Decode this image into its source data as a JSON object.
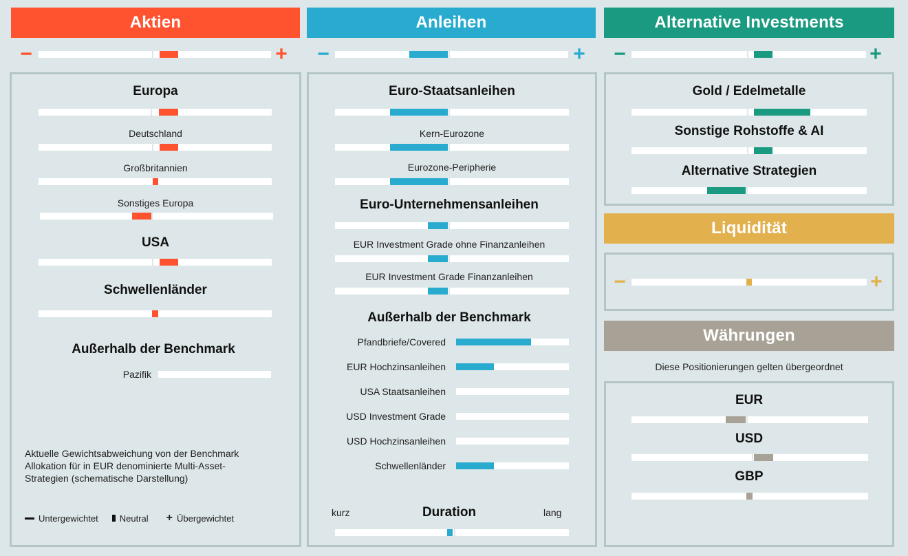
{
  "colors": {
    "aktien": "#ff5330",
    "anleihen": "#29abd0",
    "alternative": "#1a9a80",
    "liquiditaet": "#e3b04e",
    "waehrungen": "#a8a296"
  },
  "aktien": {
    "header": "Aktien",
    "minus": "−",
    "plus": "+",
    "rows": [
      {
        "label": "Europa"
      },
      {
        "label": "Deutschland"
      },
      {
        "label": "Großbritannien"
      },
      {
        "label": "Sonstiges Europa"
      },
      {
        "label": "USA"
      },
      {
        "label": "Schwellenländer"
      }
    ],
    "outside_title": "Außerhalb der Benchmark",
    "outside_items": [
      {
        "label": "Pazifik"
      }
    ],
    "note": "Aktuelle Gewichtsabweichung von der Benchmark Allokation für in EUR denominierte Multi-Asset-Strategien (schematische Darstellung)",
    "legend": {
      "minus_label": "Untergewichtet",
      "neutral_label": "Neutral",
      "plus_label": "Übergewichtet"
    }
  },
  "anleihen": {
    "header": "Anleihen",
    "minus": "−",
    "plus": "+",
    "rows": [
      {
        "label": "Euro-Staatsanleihen"
      },
      {
        "label": "Kern-Eurozone"
      },
      {
        "label": "Eurozone-Peripherie"
      },
      {
        "label": "Euro-Unternehmensanleihen"
      },
      {
        "label": "EUR Investment Grade ohne Finanzanleihen"
      },
      {
        "label": "EUR Investment Grade Finanzanleihen"
      }
    ],
    "outside_title": "Außerhalb der Benchmark",
    "outside_items": [
      {
        "label": "Pfandbriefe/Covered"
      },
      {
        "label": "EUR Hochzinsanleihen"
      },
      {
        "label": "USA Staatsanleihen"
      },
      {
        "label": "USD Investment Grade"
      },
      {
        "label": "USD Hochzinsanleihen"
      },
      {
        "label": "Schwellenländer"
      }
    ],
    "duration": {
      "title": "Duration",
      "left": "kurz",
      "right": "lang"
    }
  },
  "alternative": {
    "header": "Alternative Investments",
    "minus": "−",
    "plus": "+",
    "rows": [
      {
        "label": "Gold / Edelmetalle"
      },
      {
        "label": "Sonstige Rohstoffe & AI"
      },
      {
        "label": "Alternative Strategien"
      }
    ]
  },
  "liquiditaet": {
    "header": "Liquidität",
    "minus": "−",
    "plus": "+"
  },
  "waehrungen": {
    "header": "Währungen",
    "subtitle": "Diese Positionierungen gelten übergeordnet",
    "rows": [
      {
        "label": "EUR"
      },
      {
        "label": "USD"
      },
      {
        "label": "GBP"
      }
    ]
  }
}
